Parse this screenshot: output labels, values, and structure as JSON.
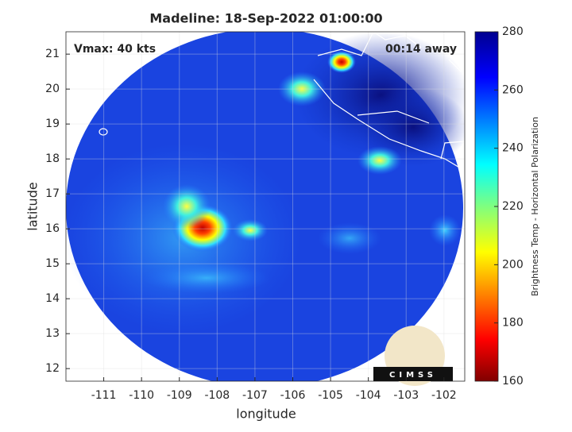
{
  "chart_data": {
    "type": "map",
    "title": "Madeline: 18-Sep-2022 01:00:00",
    "xlabel": "longitude",
    "ylabel": "latitude",
    "xlim": [
      -112,
      -101.45
    ],
    "ylim": [
      11.64,
      21.64
    ],
    "xticks": [
      -111,
      -110,
      -109,
      -108,
      -107,
      -106,
      -105,
      -104,
      -103,
      -102
    ],
    "yticks": [
      12,
      13,
      14,
      15,
      16,
      17,
      18,
      19,
      20,
      21
    ],
    "grid": true,
    "annotations": [
      "Vmax: 40 kts",
      "00:14 away"
    ],
    "colorbar": {
      "label": "Brightness Temp - Horizontal Polarization",
      "lim": [
        160,
        280
      ],
      "ticks": [
        160,
        180,
        200,
        220,
        240,
        260,
        280
      ]
    },
    "logo": "CIMSS"
  }
}
